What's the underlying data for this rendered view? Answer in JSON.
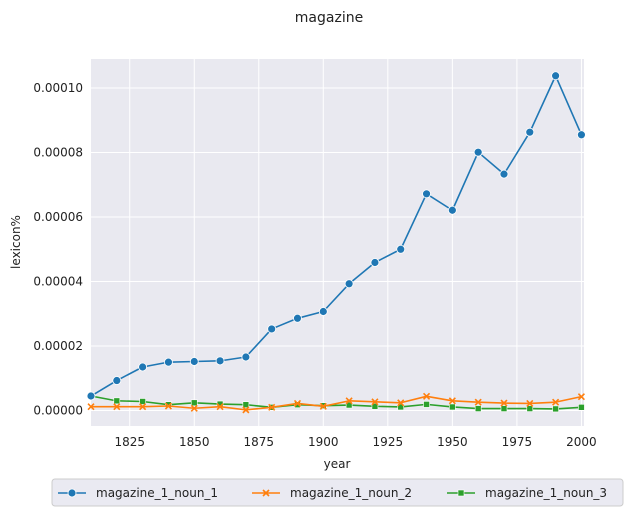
{
  "chart_data": {
    "type": "line",
    "title": "magazine",
    "xlabel": "year",
    "ylabel": "lexicon%",
    "xlim": [
      1810,
      2001
    ],
    "ylim": [
      -4.8e-06,
      0.000109
    ],
    "xticks": [
      1825,
      1850,
      1875,
      1900,
      1925,
      1950,
      1975,
      2000
    ],
    "yticks": [
      0,
      2e-05,
      4e-05,
      6e-05,
      8e-05,
      0.0001
    ],
    "ytick_labels": [
      "0.00000",
      "0.00002",
      "0.00004",
      "0.00006",
      "0.00008",
      "0.00010"
    ],
    "x": [
      1810,
      1820,
      1830,
      1840,
      1850,
      1860,
      1870,
      1880,
      1890,
      1900,
      1910,
      1920,
      1930,
      1940,
      1950,
      1960,
      1970,
      1980,
      1990,
      2000
    ],
    "series": [
      {
        "name": "magazine_1_noun_1",
        "color": "#1f77b4",
        "marker": "circle",
        "values": [
          4.5e-06,
          9.3e-06,
          1.35e-05,
          1.5e-05,
          1.52e-05,
          1.54e-05,
          1.66e-05,
          2.53e-05,
          2.86e-05,
          3.07e-05,
          3.93e-05,
          4.59e-05,
          5e-05,
          6.72e-05,
          6.21e-05,
          8.01e-05,
          7.33e-05,
          8.63e-05,
          0.0001038,
          8.55e-05
        ]
      },
      {
        "name": "magazine_1_noun_2",
        "color": "#ff7f0e",
        "marker": "x",
        "values": [
          1.2e-06,
          1.2e-06,
          1.2e-06,
          1.4e-06,
          7e-07,
          1.2e-06,
          2e-07,
          1e-06,
          2.2e-06,
          1.3e-06,
          3e-06,
          2.7e-06,
          2.4e-06,
          4.4e-06,
          3e-06,
          2.6e-06,
          2.3e-06,
          2.2e-06,
          2.6e-06,
          4.3e-06
        ]
      },
      {
        "name": "magazine_1_noun_3",
        "color": "#2ca02c",
        "marker": "square",
        "values": [
          4.5e-06,
          3e-06,
          2.8e-06,
          1.8e-06,
          2.4e-06,
          2e-06,
          1.8e-06,
          1e-06,
          1.8e-06,
          1.5e-06,
          1.7e-06,
          1.3e-06,
          1.1e-06,
          1.9e-06,
          1.1e-06,
          6e-07,
          6e-07,
          6e-07,
          5e-07,
          1e-06
        ]
      }
    ],
    "grid": true,
    "legend_position": "bottom, below plot, single row"
  }
}
